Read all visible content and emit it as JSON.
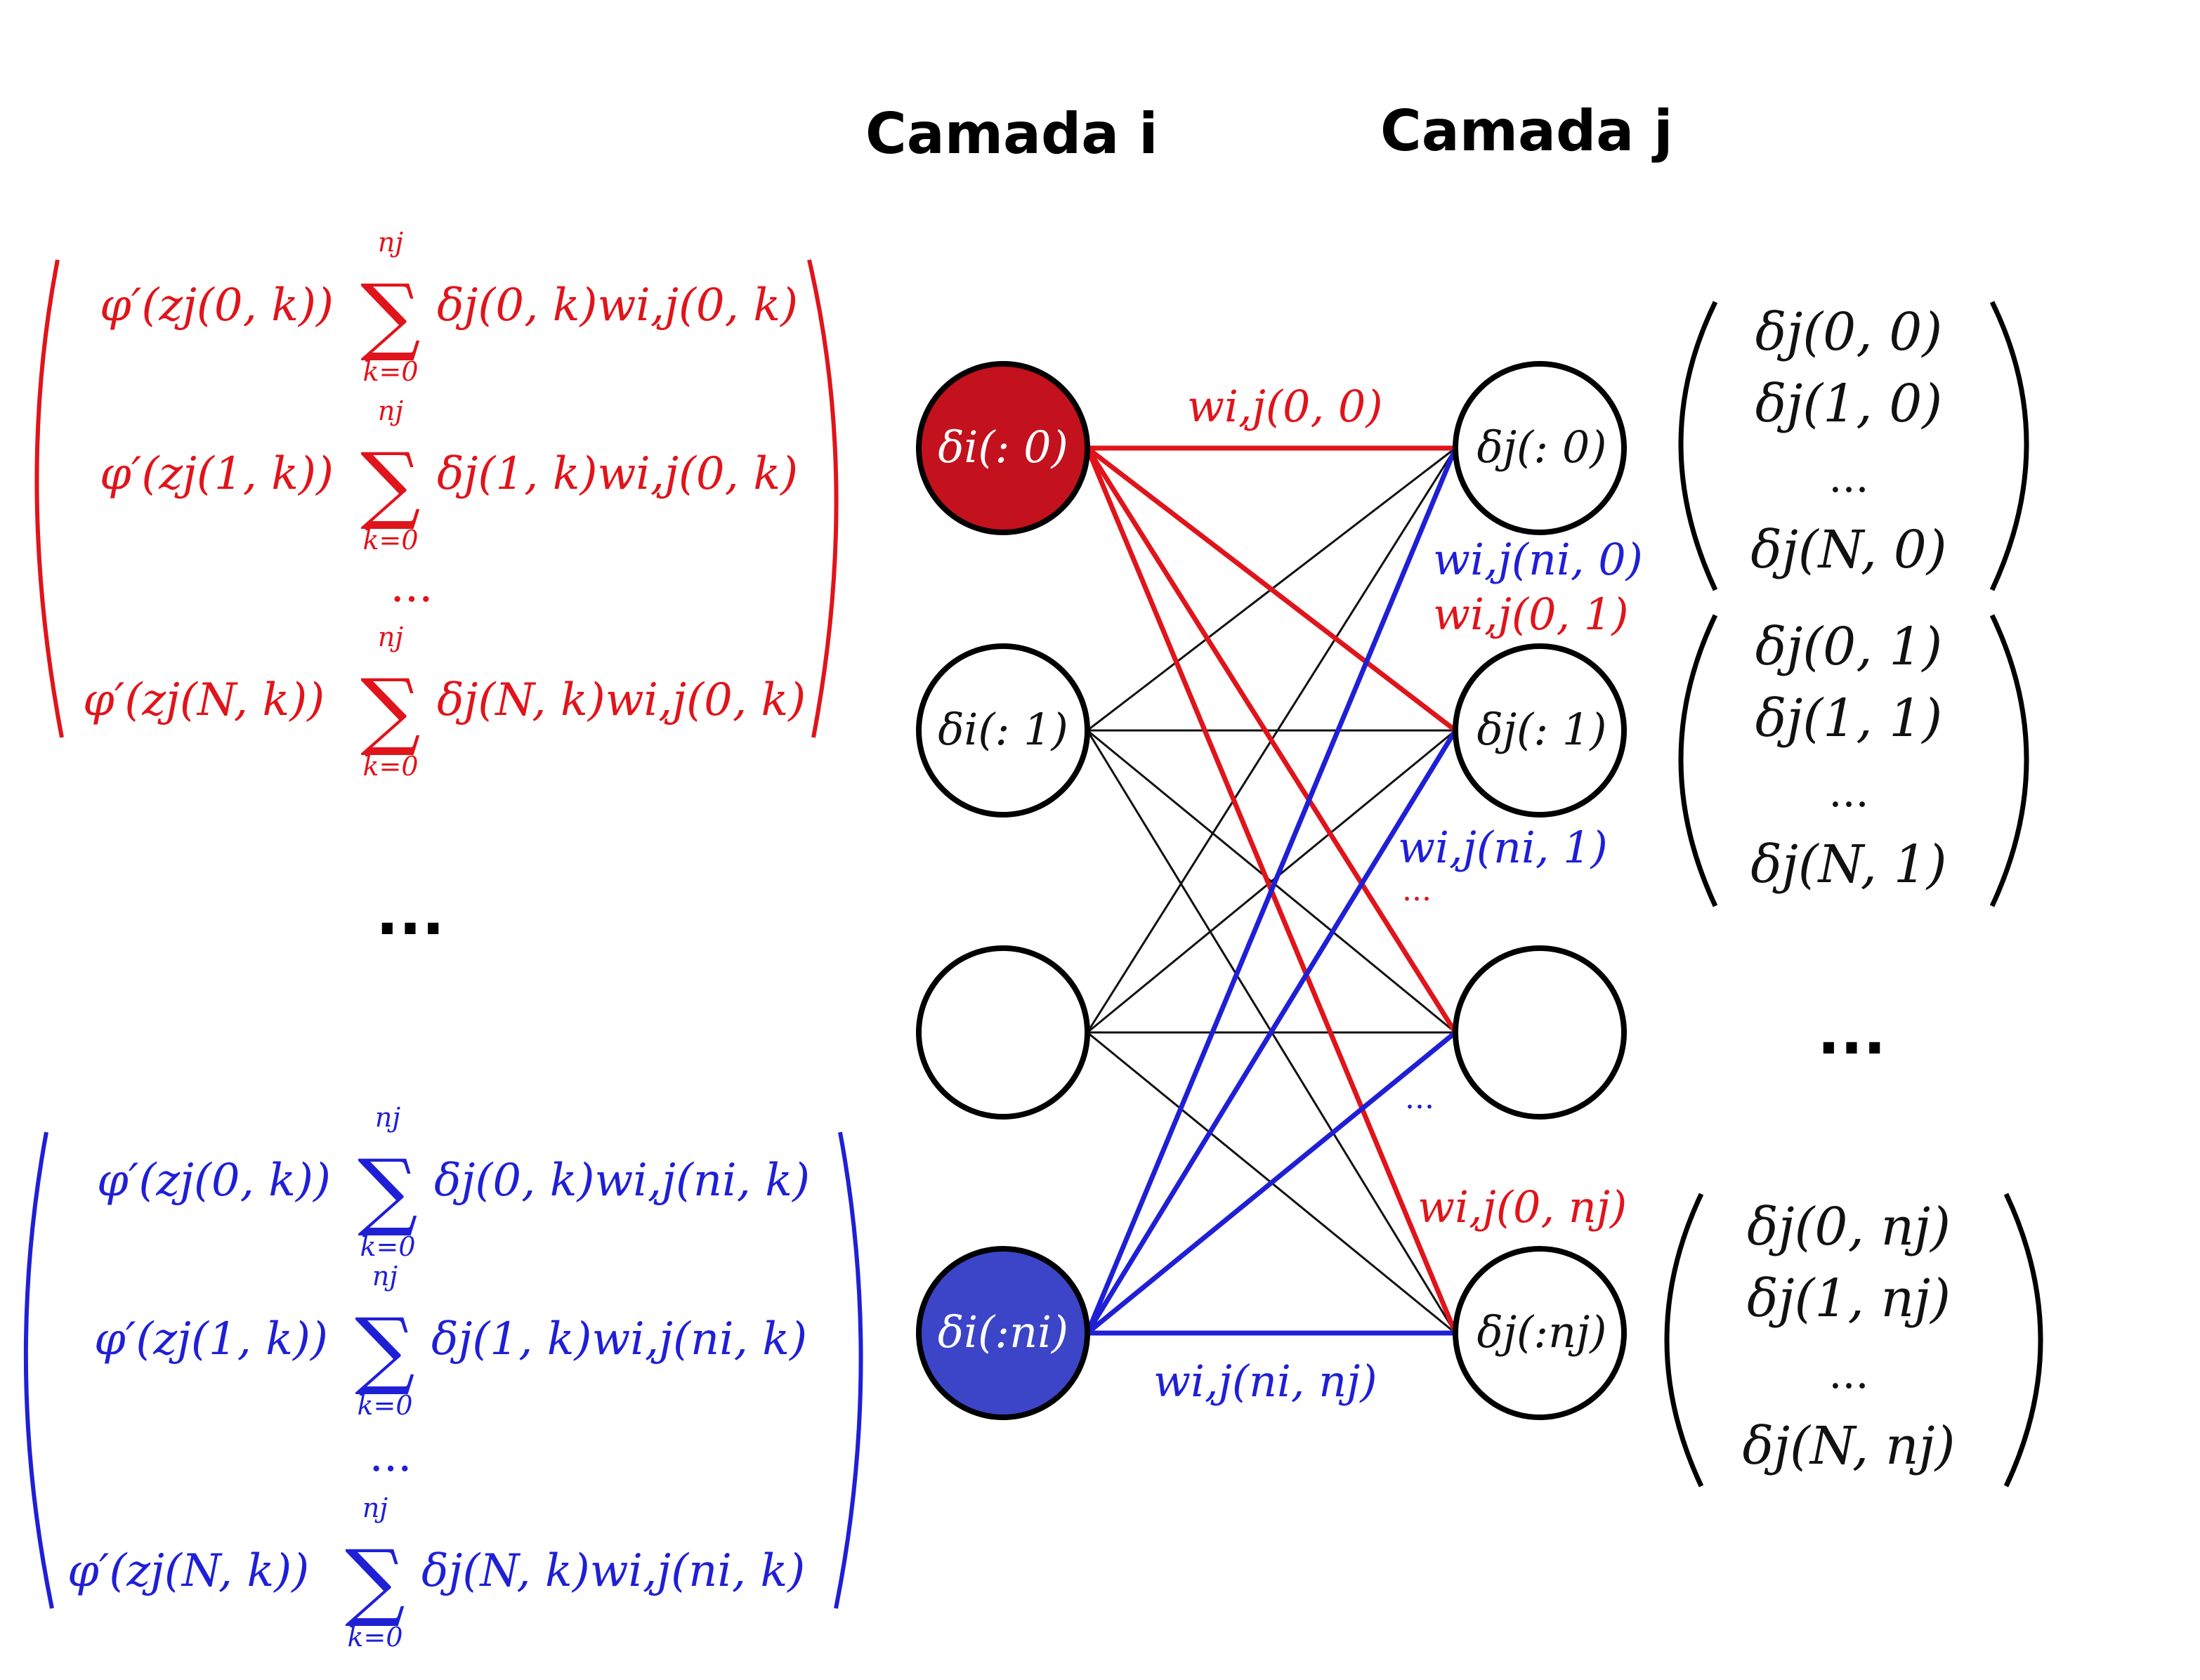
{
  "headings": {
    "layer_i": "Camada i",
    "layer_j": "Camada j"
  },
  "colors": {
    "red": "#e0141b",
    "blue": "#1f1fd6",
    "node_red_fill": "#c3111d",
    "node_blue_fill": "#3c44c8",
    "black": "#111111"
  },
  "nodes_i": [
    {
      "label": "δi(: 0)",
      "fill": "red"
    },
    {
      "label": "δi(: 1)",
      "fill": "white"
    },
    {
      "label": "",
      "fill": "white"
    },
    {
      "label": "δi(:ni)",
      "fill": "blue"
    }
  ],
  "nodes_j": [
    {
      "label": "δj(: 0)"
    },
    {
      "label": "δj(: 1)"
    },
    {
      "label": ""
    },
    {
      "label": "δj(:nj)"
    }
  ],
  "weight_labels": {
    "w_0_0": "wi,j(0, 0)",
    "w_ni_0": "wi,j(ni, 0)",
    "w_0_1": "wi,j(0, 1)",
    "w_ni_1": "wi,j(ni, 1)",
    "dots_red": "...",
    "dots_blue": "...",
    "w_0_nj": "wi,j(0, nj)",
    "w_ni_nj": "wi,j(ni, nj)"
  },
  "left_red_matrix": {
    "rows": [
      {
        "phi": "φ′(zj(0, k))",
        "sum_top": "nj",
        "sum_bottom": "k=0",
        "term": "δj(0, k)wi,j(0, k)"
      },
      {
        "phi": "φ′(zj(1, k))",
        "sum_top": "nj",
        "sum_bottom": "k=0",
        "term": "δj(1, k)wi,j(0, k)"
      },
      {
        "phi": "φ′(zj(N, k))",
        "sum_top": "nj",
        "sum_bottom": "k=0",
        "term": "δj(N, k)wi,j(0, k)"
      }
    ],
    "ellipsis": "..."
  },
  "left_middle_ellipsis": "...",
  "left_blue_matrix": {
    "rows": [
      {
        "phi": "φ′(zj(0, k))",
        "sum_top": "nj",
        "sum_bottom": "k=0",
        "term": "δj(0, k)wi,j(ni, k)"
      },
      {
        "phi": "φ′(zj(1, k))",
        "sum_top": "nj",
        "sum_bottom": "k=0",
        "term": "δj(1, k)wi,j(ni, k)"
      },
      {
        "phi": "φ′(zj(N, k))",
        "sum_top": "nj",
        "sum_bottom": "k=0",
        "term": "δj(N, k)wi,j(ni, k)"
      }
    ],
    "ellipsis": "..."
  },
  "right_vectors": [
    {
      "entries": [
        "δj(0, 0)",
        "δj(1, 0)",
        "...",
        "δj(N, 0)"
      ]
    },
    {
      "entries": [
        "δj(0, 1)",
        "δj(1, 1)",
        "...",
        "δj(N, 1)"
      ]
    },
    {
      "entries": [
        "δj(0, nj)",
        "δj(1, nj)",
        "...",
        "δj(N, nj)"
      ]
    }
  ],
  "right_middle_ellipsis": "..."
}
